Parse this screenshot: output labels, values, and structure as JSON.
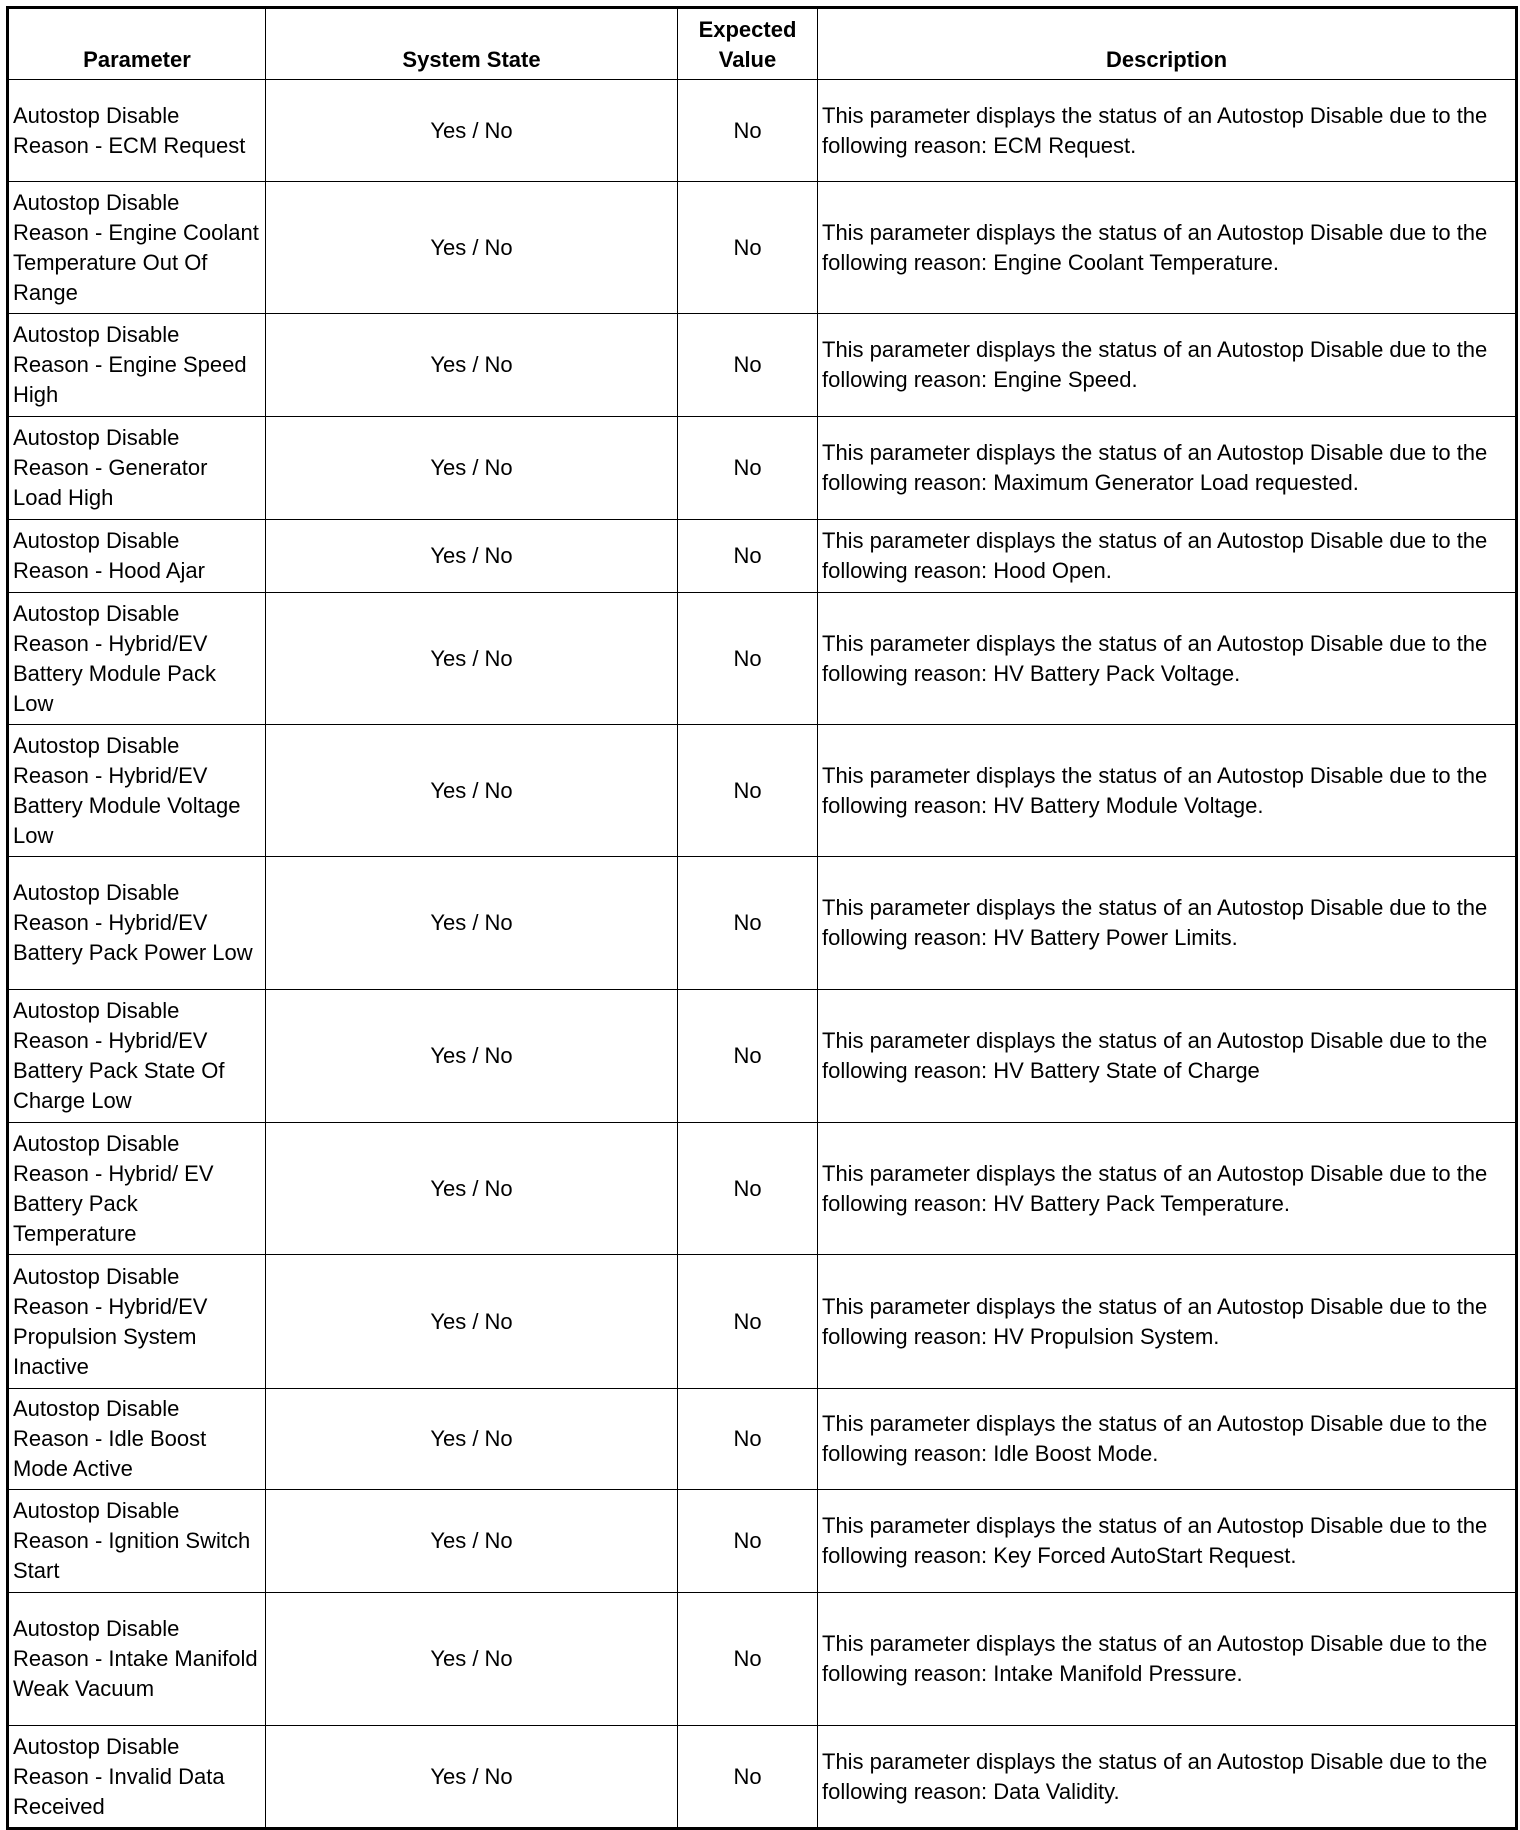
{
  "headers": [
    "Parameter",
    "System State",
    "Expected Value",
    "Description"
  ],
  "rows": [
    {
      "parameter": "Autostop Disable Reason - ECM Request",
      "state": "Yes / No",
      "expected": "No",
      "description": "This parameter displays the status of an Autostop Disable due to the following reason: ECM Request."
    },
    {
      "parameter": "Autostop Disable Reason - Engine Coolant Temperature Out Of Range",
      "state": "Yes / No",
      "expected": "No",
      "description": "This parameter displays the status of an Autostop Disable due to the following reason: Engine Coolant Temperature."
    },
    {
      "parameter": "Autostop Disable Reason - Engine Speed High",
      "state": "Yes / No",
      "expected": "No",
      "description": "This parameter displays the status of an Autostop Disable due to the following reason: Engine Speed."
    },
    {
      "parameter": "Autostop Disable Reason - Generator Load High",
      "state": "Yes / No",
      "expected": "No",
      "description": "This parameter displays the status of an Autostop Disable due to the following reason: Maximum Generator Load requested."
    },
    {
      "parameter": "Autostop Disable Reason - Hood Ajar",
      "state": "Yes / No",
      "expected": "No",
      "description": "This parameter displays the status of an Autostop Disable due to the following reason: Hood Open."
    },
    {
      "parameter": "Autostop Disable Reason - Hybrid/EV Battery Module Pack Low",
      "state": "Yes / No",
      "expected": "No",
      "description": "This parameter displays the status of an Autostop Disable due to the following reason: HV Battery Pack Voltage."
    },
    {
      "parameter": "Autostop Disable Reason - Hybrid/EV Battery Module Voltage Low",
      "state": "Yes / No",
      "expected": "No",
      "description": "This parameter displays the status of an Autostop Disable due to the following reason: HV Battery Module Voltage."
    },
    {
      "parameter": "Autostop Disable Reason - Hybrid/EV Battery Pack Power Low",
      "state": "Yes / No",
      "expected": "No",
      "description": "This parameter displays the status of an Autostop Disable due to the following reason: HV Battery Power Limits."
    },
    {
      "parameter": "Autostop Disable Reason - Hybrid/EV Battery Pack State Of Charge Low",
      "state": "Yes / No",
      "expected": "No",
      "description": "This parameter displays the status of an Autostop Disable due to the following reason: HV Battery State of Charge"
    },
    {
      "parameter": "Autostop Disable Reason - Hybrid/ EV Battery Pack Temperature",
      "state": "Yes / No",
      "expected": "No",
      "description": "This parameter displays the status of an Autostop Disable due to the following reason: HV Battery Pack Temperature."
    },
    {
      "parameter": "Autostop Disable Reason - Hybrid/EV Propulsion System Inactive",
      "state": "Yes / No",
      "expected": "No",
      "description": "This parameter displays the status of an Autostop Disable due to the following reason: HV Propulsion System."
    },
    {
      "parameter": "Autostop Disable Reason - Idle Boost Mode Active",
      "state": "Yes / No",
      "expected": "No",
      "description": "This parameter displays the status of an Autostop Disable due to the following reason: Idle Boost Mode."
    },
    {
      "parameter": "Autostop Disable Reason - Ignition Switch Start",
      "state": "Yes / No",
      "expected": "No",
      "description": "This parameter displays the status of an Autostop Disable due to the following reason: Key Forced AutoStart Request."
    },
    {
      "parameter": "Autostop Disable Reason - Intake Manifold Weak Vacuum",
      "state": "Yes / No",
      "expected": "No",
      "description": "This parameter displays the status of an Autostop Disable due to the following reason: Intake Manifold Pressure."
    },
    {
      "parameter": "Autostop Disable Reason - Invalid Data Received",
      "state": "Yes / No",
      "expected": "No",
      "description": "This parameter displays the status of an Autostop Disable due to the following reason: Data Validity."
    }
  ]
}
